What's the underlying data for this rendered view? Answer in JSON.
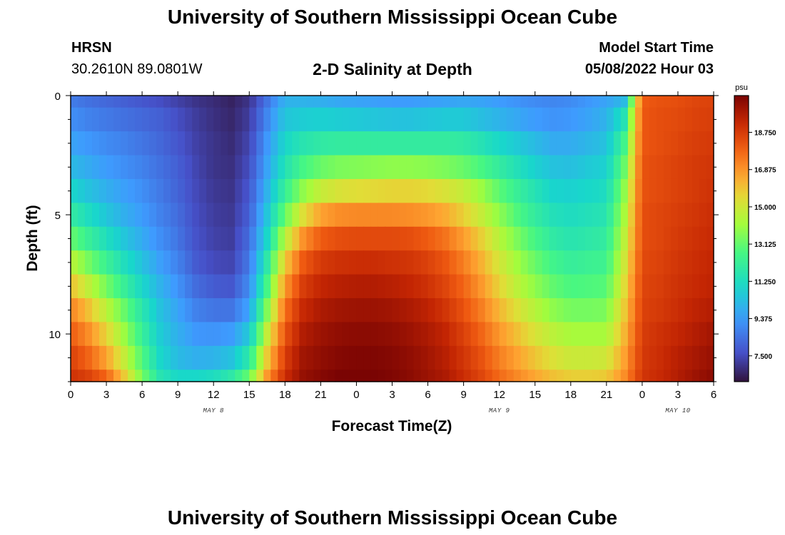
{
  "header": {
    "title": "University of Southern Mississippi Ocean Cube",
    "station": "HRSN",
    "coords": "30.2610N  89.0801W",
    "subtitle": "2-D Salinity at Depth",
    "model_label": "Model Start Time",
    "model_time": "05/08/2022 Hour 03"
  },
  "footer": {
    "title": "University of Southern Mississippi Ocean Cube"
  },
  "colors": {
    "background": "#ffffff",
    "axis": "#000000"
  },
  "chart_data": {
    "type": "heatmap",
    "title": "2-D Salinity at Depth",
    "xlabel": "Forecast Time(Z)",
    "ylabel": "Depth (ft)",
    "x_tick_labels": [
      "0",
      "3",
      "6",
      "9",
      "12",
      "15",
      "18",
      "21",
      "0",
      "3",
      "6",
      "9",
      "12",
      "15",
      "18",
      "21",
      "0",
      "3",
      "6"
    ],
    "x_range_hours": [
      0,
      54
    ],
    "date_labels": [
      {
        "label": "MAY 8",
        "hour": 12
      },
      {
        "label": "MAY 9",
        "hour": 36
      },
      {
        "label": "MAY 10",
        "hour": 51
      }
    ],
    "y_tick_labels": [
      "0",
      "5",
      "10"
    ],
    "y_tick_values": [
      0,
      5,
      10
    ],
    "ylim": [
      0,
      12
    ],
    "y_minor_step": 1,
    "colorbar": {
      "unit": "psu",
      "min": 6.2,
      "max": 20.6,
      "tick_values": [
        7.5,
        9.375,
        11.25,
        13.125,
        15.0,
        16.875,
        18.75
      ],
      "tick_labels": [
        "7.500",
        "9.375",
        "11.250",
        "13.125",
        "15.000",
        "16.875",
        "18.750"
      ]
    },
    "depth_levels_ft": [
      0,
      1,
      2,
      3,
      4,
      5,
      6,
      7,
      8,
      9,
      10,
      11,
      12
    ],
    "times_hours": [
      0,
      1.5,
      3,
      4.5,
      6,
      7.5,
      9,
      10.5,
      12,
      13.5,
      15,
      16.5,
      18,
      19.5,
      21,
      22.5,
      24,
      25.5,
      27,
      28.5,
      30,
      31.5,
      33,
      34.5,
      36,
      37.5,
      39,
      40.5,
      42,
      43.5,
      45,
      46.5,
      48,
      49.5,
      51,
      52.5,
      54
    ],
    "salinity_psu": [
      [
        8.7,
        8.4,
        8.2,
        8.0,
        7.8,
        7.6,
        7.3,
        7.0,
        6.8,
        6.6,
        7.0,
        8.5,
        10.0,
        10.0,
        9.9,
        9.7,
        9.6,
        9.5,
        9.4,
        9.4,
        9.5,
        9.6,
        9.7,
        9.6,
        9.4,
        9.2,
        9.0,
        8.9,
        9.0,
        9.3,
        9.6,
        10.2,
        18.0,
        18.2,
        18.3,
        18.5,
        18.6
      ],
      [
        9.1,
        8.8,
        8.6,
        8.4,
        8.2,
        8.0,
        7.6,
        7.2,
        6.9,
        6.7,
        7.2,
        8.9,
        10.5,
        10.7,
        10.8,
        10.7,
        10.6,
        10.5,
        10.4,
        10.4,
        10.5,
        10.6,
        10.6,
        10.3,
        10.0,
        9.7,
        9.4,
        9.2,
        9.3,
        9.6,
        10.0,
        11.5,
        18.1,
        18.3,
        18.4,
        18.6,
        18.7
      ],
      [
        9.6,
        9.3,
        9.0,
        8.8,
        8.5,
        8.2,
        7.8,
        7.3,
        7.0,
        6.8,
        7.4,
        9.3,
        11.0,
        11.6,
        11.9,
        12.0,
        12.0,
        12.0,
        12.0,
        12.0,
        12.0,
        12.0,
        11.9,
        11.5,
        11.0,
        10.6,
        10.2,
        9.8,
        9.8,
        10.1,
        10.4,
        12.5,
        18.1,
        18.3,
        18.5,
        18.7,
        18.8
      ],
      [
        10.2,
        9.8,
        9.4,
        9.1,
        8.8,
        8.4,
        8.0,
        7.4,
        7.0,
        6.9,
        7.6,
        9.6,
        11.5,
        12.6,
        13.2,
        13.5,
        13.6,
        13.7,
        13.8,
        13.8,
        13.7,
        13.5,
        13.2,
        12.7,
        12.0,
        11.4,
        10.8,
        10.4,
        10.3,
        10.6,
        10.8,
        13.2,
        18.2,
        18.4,
        18.6,
        18.8,
        18.9
      ],
      [
        11.0,
        10.4,
        9.9,
        9.5,
        9.1,
        8.6,
        8.1,
        7.5,
        7.1,
        7.0,
        7.8,
        10.0,
        12.2,
        13.8,
        14.8,
        15.2,
        15.4,
        15.5,
        15.6,
        15.6,
        15.5,
        15.2,
        14.8,
        14.0,
        13.0,
        12.2,
        11.5,
        10.9,
        10.8,
        11.0,
        11.2,
        13.8,
        18.2,
        18.4,
        18.6,
        18.8,
        19.0
      ],
      [
        12.0,
        11.2,
        10.5,
        9.9,
        9.4,
        8.8,
        8.3,
        7.6,
        7.2,
        7.1,
        8.0,
        10.5,
        13.2,
        15.3,
        16.6,
        17.0,
        17.1,
        17.1,
        17.1,
        17.0,
        16.8,
        16.4,
        15.7,
        14.8,
        13.8,
        12.8,
        12.0,
        11.4,
        11.2,
        11.4,
        11.6,
        14.2,
        18.3,
        18.5,
        18.7,
        18.9,
        19.1
      ],
      [
        13.2,
        12.2,
        11.3,
        10.5,
        9.8,
        9.1,
        8.5,
        7.7,
        7.3,
        7.2,
        8.3,
        11.0,
        14.5,
        16.9,
        18.0,
        18.3,
        18.4,
        18.4,
        18.4,
        18.3,
        18.0,
        17.5,
        16.7,
        15.7,
        14.5,
        13.5,
        12.6,
        11.9,
        11.6,
        11.8,
        12.0,
        14.6,
        18.3,
        18.5,
        18.8,
        19.0,
        19.2
      ],
      [
        14.6,
        13.4,
        12.3,
        11.3,
        10.4,
        9.5,
        8.8,
        7.9,
        7.5,
        7.4,
        8.6,
        11.8,
        15.8,
        18.0,
        18.8,
        19.0,
        19.1,
        19.1,
        19.0,
        18.9,
        18.6,
        18.1,
        17.3,
        16.3,
        15.1,
        14.1,
        13.2,
        12.5,
        12.1,
        12.3,
        12.4,
        15.0,
        18.4,
        18.6,
        18.9,
        19.1,
        19.3
      ],
      [
        16.0,
        14.7,
        13.4,
        12.2,
        11.0,
        10.0,
        9.2,
        8.3,
        7.9,
        7.8,
        9.0,
        12.6,
        16.8,
        18.7,
        19.3,
        19.5,
        19.6,
        19.6,
        19.5,
        19.3,
        19.0,
        18.5,
        17.8,
        16.8,
        15.6,
        14.6,
        13.8,
        13.1,
        12.7,
        12.8,
        12.9,
        15.4,
        18.5,
        18.7,
        19.0,
        19.2,
        19.4
      ],
      [
        17.2,
        16.0,
        14.6,
        13.2,
        11.7,
        10.4,
        9.6,
        8.8,
        8.5,
        8.5,
        9.6,
        13.6,
        17.6,
        19.2,
        19.7,
        19.9,
        20.0,
        20.0,
        19.9,
        19.7,
        19.4,
        18.9,
        18.2,
        17.3,
        16.2,
        15.3,
        14.5,
        13.8,
        13.4,
        13.4,
        13.5,
        15.8,
        18.6,
        18.8,
        19.1,
        19.4,
        19.6
      ],
      [
        18.0,
        17.0,
        15.6,
        14.0,
        12.2,
        10.7,
        9.9,
        9.3,
        9.2,
        9.4,
        10.6,
        14.8,
        18.2,
        19.6,
        20.0,
        20.2,
        20.3,
        20.3,
        20.2,
        20.0,
        19.7,
        19.3,
        18.6,
        17.8,
        16.8,
        16.0,
        15.2,
        14.6,
        14.2,
        14.2,
        14.2,
        16.2,
        18.7,
        19.0,
        19.3,
        19.6,
        19.9
      ],
      [
        18.6,
        17.8,
        16.6,
        14.8,
        12.8,
        11.0,
        10.2,
        9.9,
        10.0,
        10.4,
        11.8,
        15.8,
        18.7,
        19.9,
        20.2,
        20.4,
        20.5,
        20.5,
        20.4,
        20.2,
        19.9,
        19.5,
        18.9,
        18.2,
        17.3,
        16.6,
        15.9,
        15.3,
        14.9,
        14.9,
        15.0,
        16.6,
        18.8,
        19.1,
        19.5,
        19.8,
        20.1
      ],
      [
        19.0,
        18.6,
        17.8,
        15.8,
        13.4,
        11.6,
        11.0,
        11.0,
        11.2,
        11.8,
        13.2,
        16.8,
        19.1,
        20.1,
        20.4,
        20.6,
        20.6,
        20.6,
        20.5,
        20.3,
        20.0,
        19.7,
        19.1,
        18.5,
        17.7,
        17.1,
        16.5,
        16.0,
        15.7,
        15.7,
        15.8,
        17.0,
        18.9,
        19.2,
        19.6,
        20.0,
        20.3
      ]
    ]
  }
}
